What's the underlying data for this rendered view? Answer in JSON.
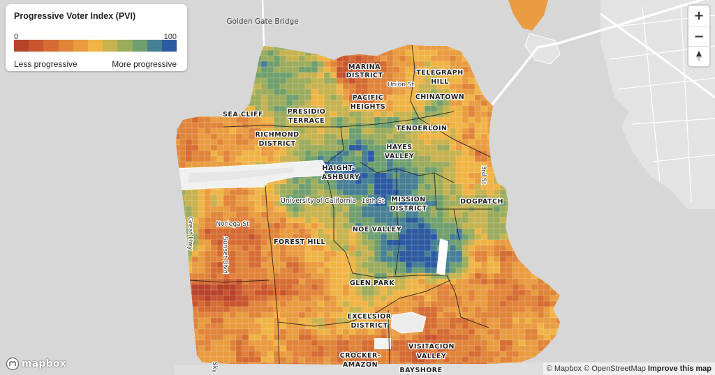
{
  "legend": {
    "title": "Progressive Voter Index (PVI)",
    "min_label": "0",
    "max_label": "100",
    "low_label": "Less progressive",
    "high_label": "More progressive",
    "colors": [
      "#b7432b",
      "#c8552e",
      "#d56c33",
      "#e0843a",
      "#e99c40",
      "#f0b446",
      "#c6b350",
      "#9cac5d",
      "#6f9f6e",
      "#467f94",
      "#2c5aa0"
    ]
  },
  "map": {
    "landmarks": {
      "golden_gate_bridge": "Golden Gate Bridge",
      "university": "University of California"
    },
    "neighborhoods": {
      "marina": [
        "MARINA",
        "DISTRICT"
      ],
      "telegraph_hill": [
        "TELEGRAPH",
        "HILL"
      ],
      "pacific_heights": [
        "PACIFIC",
        "HEIGHTS"
      ],
      "chinatown": [
        "CHINATOWN"
      ],
      "sea_cliff": [
        "SEA CLIFF"
      ],
      "presidio_terrace": [
        "PRESIDIO",
        "TERRACE"
      ],
      "tenderloin": [
        "TENDERLOIN"
      ],
      "richmond": [
        "RICHMOND",
        "DISTRICT"
      ],
      "hayes_valley": [
        "HAYES",
        "VALLEY"
      ],
      "haight_ashbury": [
        "HAIGHT-",
        "ASHBURY"
      ],
      "mission": [
        "MISSION",
        "DISTRICT"
      ],
      "dogpatch": [
        "DOGPATCH"
      ],
      "forest_hill": [
        "FOREST HILL"
      ],
      "noe_valley": [
        "NOE VALLEY"
      ],
      "glen_park": [
        "GLEN PARK"
      ],
      "excelsior": [
        "EXCELSIOR",
        "DISTRICT"
      ],
      "visitacion_valley": [
        "VISITACION",
        "VALLEY"
      ],
      "crocker_amazon": [
        "CROCKER-",
        "AMAZON"
      ],
      "bayshore": [
        "BAYSHORE"
      ]
    },
    "streets": {
      "union_st": "Union St",
      "third_st": "3rd St",
      "eighteenth_st": "18th St",
      "noriega_st": "Noriega St",
      "great_hwy": "Great Hwy",
      "sunset_blvd": "Sunset Blvd",
      "skyline": "Sky"
    }
  },
  "controls": {
    "zoom_in_label": "+",
    "zoom_out_label": "−",
    "zoom_in_icon": "plus-icon",
    "zoom_out_icon": "minus-icon",
    "compass_icon": "compass-icon"
  },
  "branding": {
    "logo_text": "mapbox",
    "logo_icon": "mapbox-logo-icon"
  },
  "attribution": {
    "mapbox": "© Mapbox",
    "osm": "© OpenStreetMap",
    "improve": "Improve this map"
  }
}
